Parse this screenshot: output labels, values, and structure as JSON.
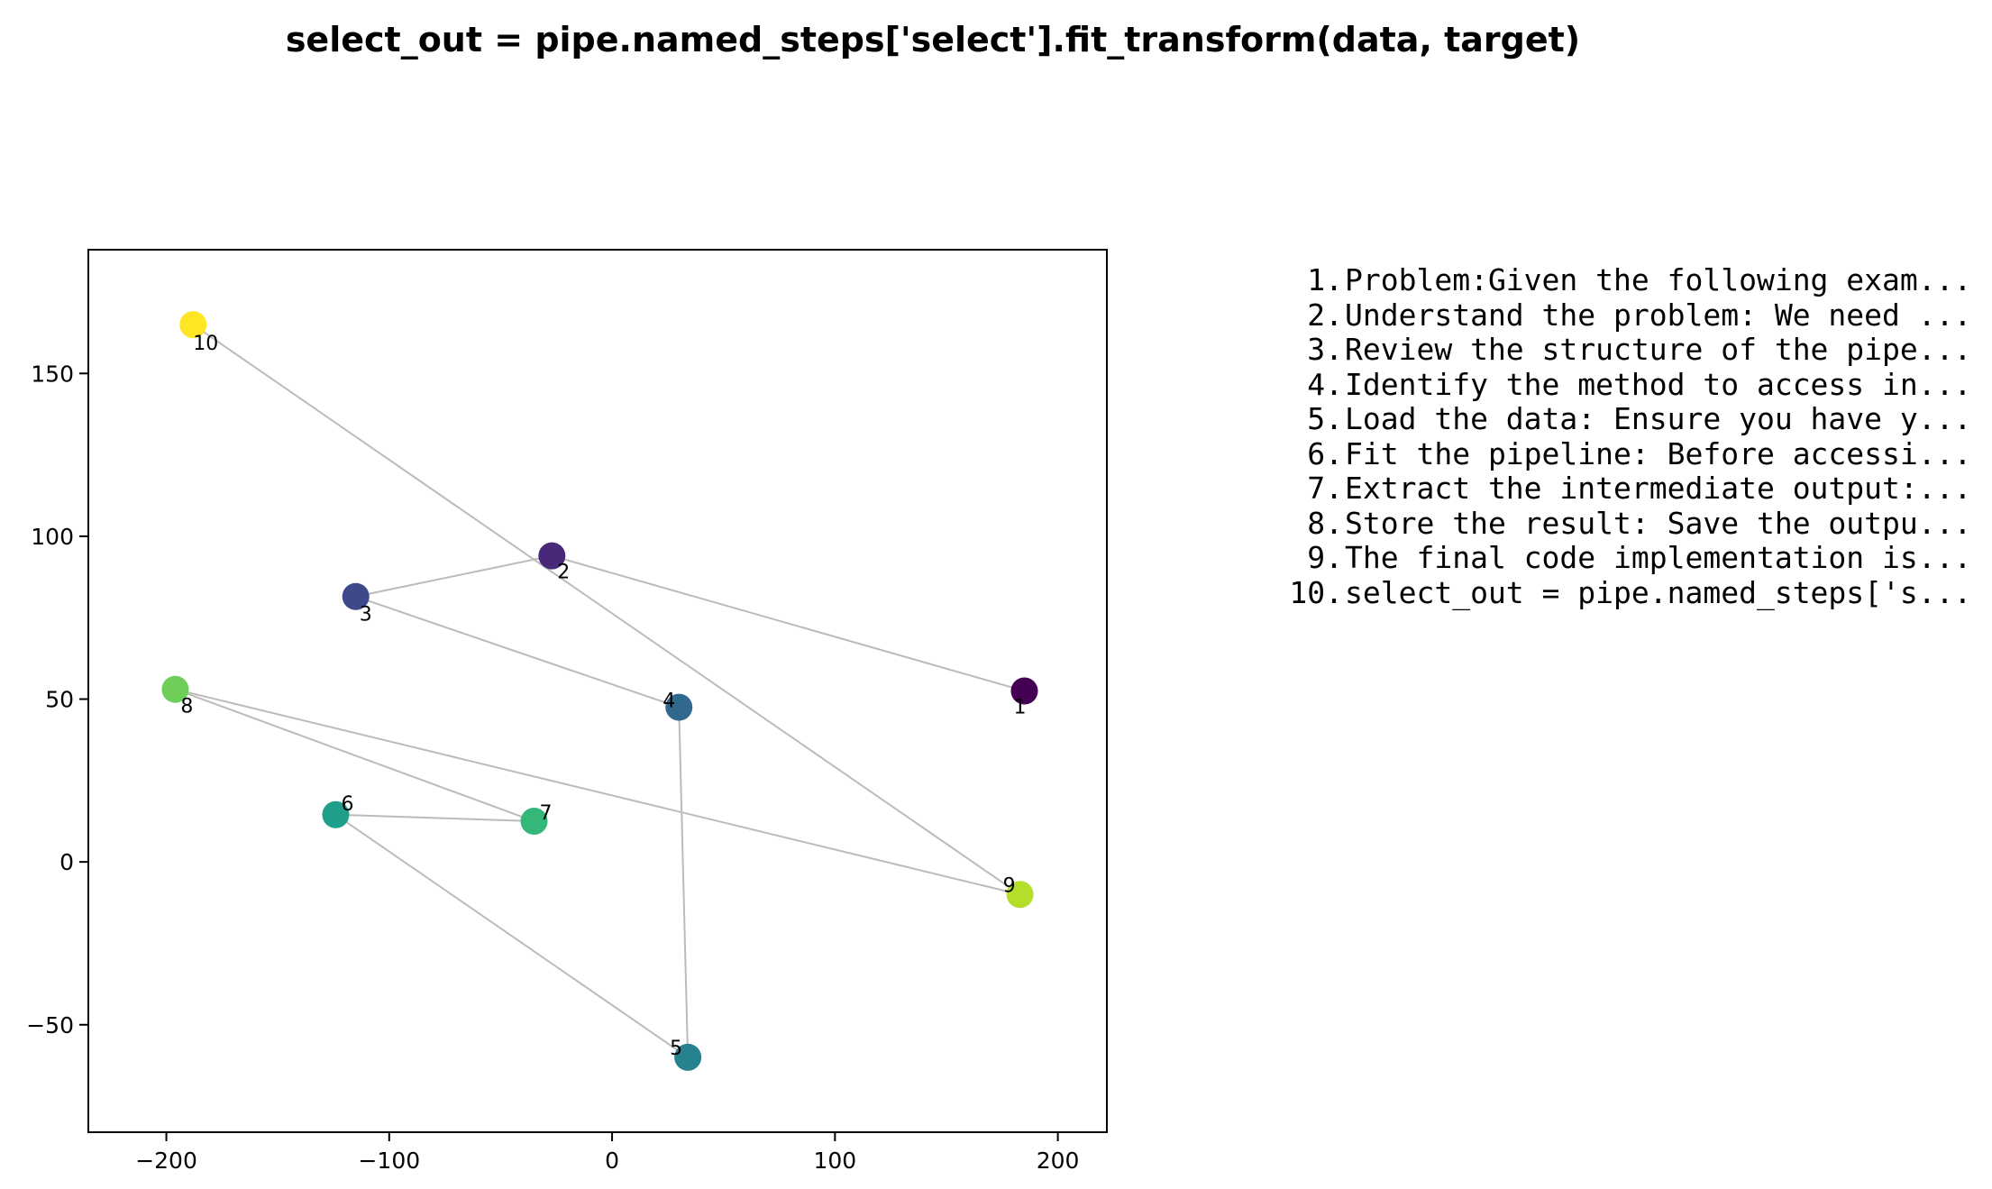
{
  "chart_data": {
    "type": "scatter",
    "title": "select_out = pipe.named_steps['select'].fit_transform(data, target)",
    "xlim": [
      -235,
      222
    ],
    "ylim": [
      -83,
      188
    ],
    "x_ticks": [
      -200,
      -100,
      0,
      100,
      200
    ],
    "y_ticks": [
      -50,
      0,
      50,
      100,
      150
    ],
    "x_tick_labels": [
      "−200",
      "−100",
      "0",
      "100",
      "200"
    ],
    "y_tick_labels": [
      "−50",
      "0",
      "50",
      "100",
      "150"
    ],
    "grid": false,
    "connected_in_order": true,
    "line_color": "#bbbbbb",
    "points": [
      {
        "label": "1",
        "x": 185,
        "y": 52.5,
        "color": "#440154"
      },
      {
        "label": "2",
        "x": -27,
        "y": 94,
        "color": "#482878"
      },
      {
        "label": "3",
        "x": -115,
        "y": 81.5,
        "color": "#3e4989"
      },
      {
        "label": "4",
        "x": 30,
        "y": 47.5,
        "color": "#31688e"
      },
      {
        "label": "5",
        "x": 34,
        "y": -60,
        "color": "#26828e"
      },
      {
        "label": "6",
        "x": -124,
        "y": 14.5,
        "color": "#1f9e89"
      },
      {
        "label": "7",
        "x": -35,
        "y": 12.5,
        "color": "#35b779"
      },
      {
        "label": "8",
        "x": -196,
        "y": 53,
        "color": "#6ece58"
      },
      {
        "label": "9",
        "x": 183,
        "y": -10,
        "color": "#b5de2b"
      },
      {
        "label": "10",
        "x": -188,
        "y": 165,
        "color": "#fde725"
      }
    ]
  },
  "steps": [
    {
      "num": "1.",
      "text": "Problem:Given the following exam..."
    },
    {
      "num": "2.",
      "text": "Understand the problem: We need ..."
    },
    {
      "num": "3.",
      "text": "Review the structure of the pipe..."
    },
    {
      "num": "4.",
      "text": "Identify the method to access in..."
    },
    {
      "num": "5.",
      "text": "Load the data: Ensure you have y..."
    },
    {
      "num": "6.",
      "text": "Fit the pipeline: Before accessi..."
    },
    {
      "num": "7.",
      "text": "Extract the intermediate output:..."
    },
    {
      "num": "8.",
      "text": "Store the result: Save the outpu..."
    },
    {
      "num": "9.",
      "text": "The final code implementation is..."
    },
    {
      "num": "10.",
      "text": "select_out = pipe.named_steps['s..."
    }
  ]
}
